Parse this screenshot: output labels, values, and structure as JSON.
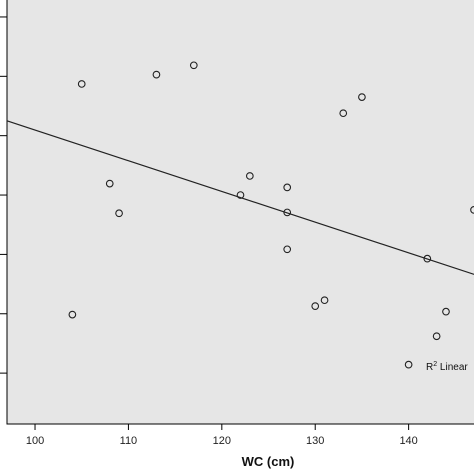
{
  "chart_data": {
    "type": "scatter",
    "title": "",
    "xlabel": "WC (cm)",
    "ylabel": "",
    "xlim": [
      97,
      147
    ],
    "ylim": [
      0,
      100
    ],
    "x_ticks": [
      100,
      110,
      120,
      130,
      140
    ],
    "y_tick_values": [
      12,
      26,
      40,
      54,
      68,
      82,
      96
    ],
    "grid": false,
    "series": [
      {
        "points": [
          {
            "x": 104,
            "y": 25.8
          },
          {
            "x": 105,
            "y": 80.2
          },
          {
            "x": 108,
            "y": 56.7
          },
          {
            "x": 109,
            "y": 49.7
          },
          {
            "x": 113,
            "y": 82.4
          },
          {
            "x": 117,
            "y": 84.6
          },
          {
            "x": 122,
            "y": 54.0
          },
          {
            "x": 123,
            "y": 58.5
          },
          {
            "x": 127,
            "y": 55.8
          },
          {
            "x": 127,
            "y": 49.9
          },
          {
            "x": 127,
            "y": 41.2
          },
          {
            "x": 130,
            "y": 27.8
          },
          {
            "x": 131,
            "y": 29.2
          },
          {
            "x": 133,
            "y": 73.3
          },
          {
            "x": 135,
            "y": 77.1
          },
          {
            "x": 140,
            "y": 14.0
          },
          {
            "x": 142,
            "y": 39.0
          },
          {
            "x": 143,
            "y": 20.7
          },
          {
            "x": 144,
            "y": 26.5
          },
          {
            "x": 147,
            "y": 50.5
          }
        ]
      }
    ],
    "fit_line": {
      "type": "linear",
      "x": [
        97,
        147
      ],
      "y": [
        71.5,
        35.3
      ]
    },
    "legend": {
      "prefix": "R",
      "superscript": "2",
      "suffix": " Linear",
      "position": "bottom-right"
    },
    "colors": {
      "plot_background": "#e6e6e6",
      "marker": "#222222",
      "line": "#222222",
      "frame": "#000000"
    }
  }
}
